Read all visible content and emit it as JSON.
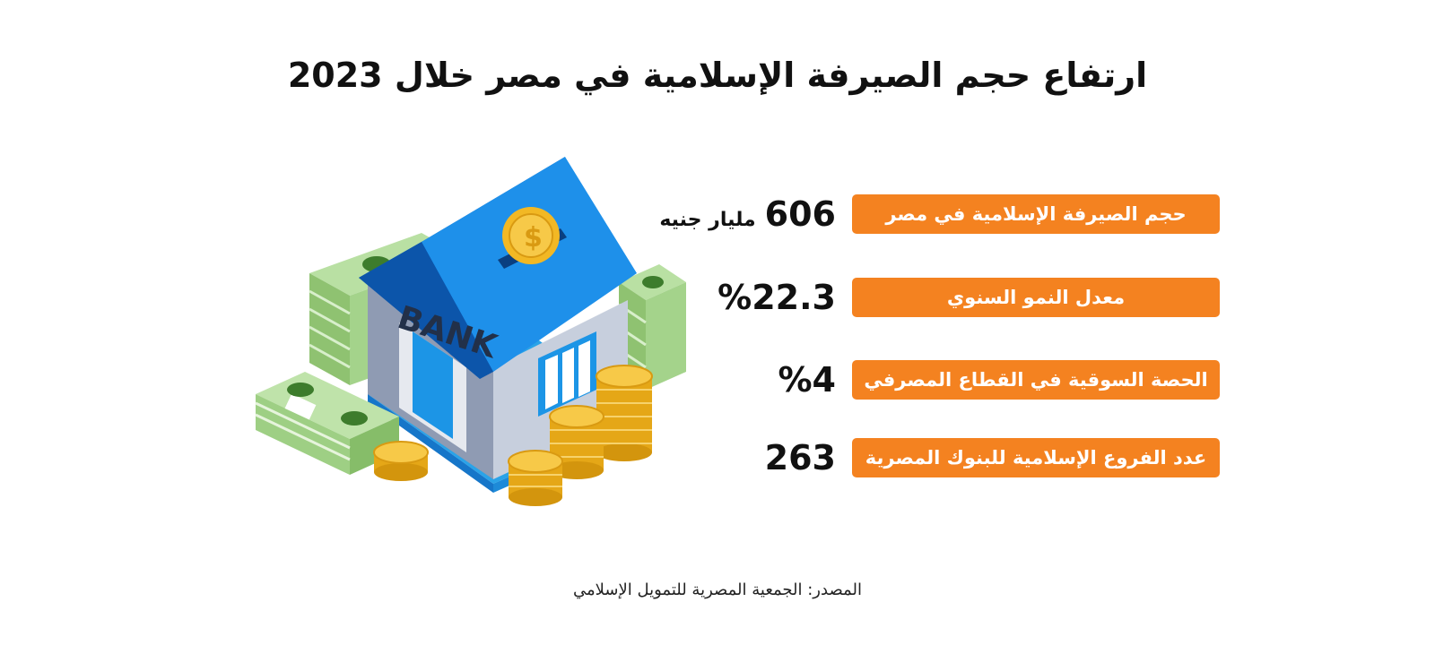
{
  "title": "ارتفاع حجم الصيرفة الإسلامية في مصر خلال 2023",
  "illustration": {
    "bank_sign": "BANK",
    "coin_symbol": "$",
    "colors": {
      "roof": "#1e90ea",
      "roof_dark": "#0f62c2",
      "wall": "#aab3c6",
      "coin": "#f2b824",
      "money": "#9fcf86"
    }
  },
  "stats": [
    {
      "label": "حجم الصيرفة الإسلامية في مصر",
      "value": "606",
      "unit": "مليار جنيه"
    },
    {
      "label": "معدل النمو السنوي",
      "value": "%22.3",
      "unit": ""
    },
    {
      "label": "الحصة السوقية في القطاع المصرفي",
      "value": "%4",
      "unit": ""
    },
    {
      "label": "عدد الفروع الإسلامية للبنوك المصرية",
      "value": "263",
      "unit": ""
    }
  ],
  "source": "المصدر: الجمعية المصرية للتمويل الإسلامي",
  "colors": {
    "label_background": "#f48220",
    "label_text": "#ffffff",
    "value_text": "#111111"
  }
}
